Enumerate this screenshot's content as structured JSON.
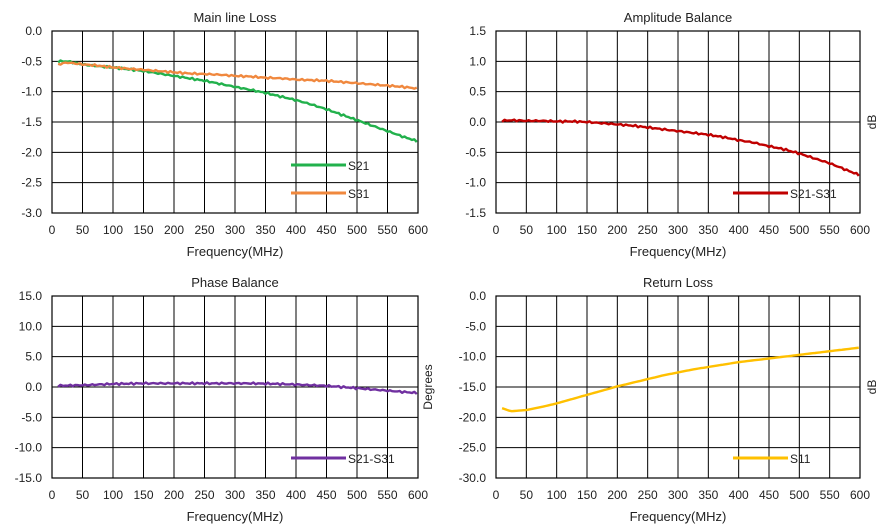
{
  "chart_data": [
    {
      "type": "line",
      "title": "Main line Loss",
      "xlabel": "Frequency(MHz)",
      "ylabel": "",
      "xlim": [
        0,
        600
      ],
      "ylim": [
        -3.0,
        0.0
      ],
      "x_ticks": [
        "0",
        "50",
        "100",
        "150",
        "200",
        "250",
        "300",
        "350",
        "400",
        "450",
        "500",
        "550",
        "600"
      ],
      "y_ticks": [
        "0.0",
        "-0.5",
        "-1.0",
        "-1.5",
        "-2.0",
        "-2.5",
        "-3.0"
      ],
      "grid": true,
      "legend_position": "bottom-right",
      "x": [
        10,
        25,
        50,
        75,
        100,
        125,
        150,
        175,
        200,
        225,
        250,
        275,
        300,
        325,
        350,
        375,
        400,
        425,
        450,
        475,
        500,
        525,
        550,
        575,
        600
      ],
      "series": [
        {
          "name": "S21",
          "color": "#22b14c",
          "values": [
            -0.5,
            -0.5,
            -0.55,
            -0.58,
            -0.6,
            -0.63,
            -0.66,
            -0.7,
            -0.74,
            -0.78,
            -0.82,
            -0.87,
            -0.92,
            -0.97,
            -1.02,
            -1.08,
            -1.14,
            -1.21,
            -1.29,
            -1.38,
            -1.47,
            -1.56,
            -1.65,
            -1.74,
            -1.82
          ]
        },
        {
          "name": "S31",
          "color": "#f0883e",
          "values": [
            -0.55,
            -0.52,
            -0.55,
            -0.57,
            -0.6,
            -0.62,
            -0.64,
            -0.66,
            -0.68,
            -0.7,
            -0.71,
            -0.72,
            -0.74,
            -0.75,
            -0.77,
            -0.78,
            -0.8,
            -0.81,
            -0.82,
            -0.84,
            -0.86,
            -0.88,
            -0.9,
            -0.92,
            -0.95
          ]
        }
      ]
    },
    {
      "type": "line",
      "title": "Amplitude Balance",
      "xlabel": "Frequency(MHz)",
      "ylabel": "dB",
      "xlim": [
        0,
        600
      ],
      "ylim": [
        -1.5,
        1.5
      ],
      "x_ticks": [
        "0",
        "50",
        "100",
        "150",
        "200",
        "250",
        "300",
        "350",
        "400",
        "450",
        "500",
        "550",
        "600"
      ],
      "y_ticks": [
        "1.5",
        "1.0",
        "0.5",
        "0.0",
        "-0.5",
        "-1.0",
        "-1.5"
      ],
      "grid": true,
      "legend_position": "bottom-right",
      "x": [
        10,
        25,
        50,
        75,
        100,
        125,
        150,
        175,
        200,
        225,
        250,
        275,
        300,
        325,
        350,
        375,
        400,
        425,
        450,
        475,
        500,
        525,
        550,
        575,
        600
      ],
      "series": [
        {
          "name": "S21-S31",
          "color": "#c00000",
          "values": [
            0.02,
            0.03,
            0.02,
            0.02,
            0.01,
            0.01,
            0.0,
            -0.02,
            -0.04,
            -0.06,
            -0.09,
            -0.12,
            -0.15,
            -0.18,
            -0.21,
            -0.25,
            -0.3,
            -0.34,
            -0.4,
            -0.45,
            -0.52,
            -0.6,
            -0.68,
            -0.78,
            -0.88
          ]
        }
      ]
    },
    {
      "type": "line",
      "title": "Phase Balance",
      "xlabel": "Frequency(MHz)",
      "ylabel": "Degrees",
      "xlim": [
        0,
        600
      ],
      "ylim": [
        -15.0,
        15.0
      ],
      "x_ticks": [
        "0",
        "50",
        "100",
        "150",
        "200",
        "250",
        "300",
        "350",
        "400",
        "450",
        "500",
        "550",
        "600"
      ],
      "y_ticks": [
        "15.0",
        "10.0",
        "5.0",
        "0.0",
        "-5.0",
        "-10.0",
        "-15.0"
      ],
      "grid": true,
      "legend_position": "bottom-right",
      "x": [
        10,
        25,
        50,
        75,
        100,
        125,
        150,
        175,
        200,
        225,
        250,
        275,
        300,
        325,
        350,
        375,
        400,
        425,
        450,
        475,
        500,
        525,
        550,
        575,
        600
      ],
      "series": [
        {
          "name": "S21-S31",
          "color": "#7030a0",
          "values": [
            0.2,
            0.25,
            0.3,
            0.4,
            0.5,
            0.55,
            0.6,
            0.6,
            0.6,
            0.6,
            0.6,
            0.6,
            0.6,
            0.6,
            0.55,
            0.5,
            0.4,
            0.3,
            0.2,
            0.0,
            -0.2,
            -0.4,
            -0.6,
            -0.8,
            -1.0
          ]
        }
      ]
    },
    {
      "type": "line",
      "title": "Return Loss",
      "xlabel": "Frequency(MHz)",
      "ylabel": "dB",
      "xlim": [
        0,
        600
      ],
      "ylim": [
        -30.0,
        0.0
      ],
      "x_ticks": [
        "0",
        "50",
        "100",
        "150",
        "200",
        "250",
        "300",
        "350",
        "400",
        "450",
        "500",
        "550",
        "600"
      ],
      "y_ticks": [
        "0.0",
        "-5.0",
        "-10.0",
        "-15.0",
        "-20.0",
        "-25.0",
        "-30.0"
      ],
      "grid": true,
      "legend_position": "bottom-right",
      "x": [
        10,
        25,
        50,
        75,
        100,
        125,
        150,
        175,
        200,
        225,
        250,
        275,
        300,
        325,
        350,
        375,
        400,
        425,
        450,
        475,
        500,
        525,
        550,
        575,
        600
      ],
      "series": [
        {
          "name": "S11",
          "color": "#ffc000",
          "values": [
            -18.5,
            -19.0,
            -18.8,
            -18.3,
            -17.7,
            -17.0,
            -16.3,
            -15.6,
            -14.9,
            -14.3,
            -13.7,
            -13.1,
            -12.6,
            -12.1,
            -11.7,
            -11.3,
            -10.9,
            -10.6,
            -10.3,
            -10.0,
            -9.7,
            -9.4,
            -9.1,
            -8.8,
            -8.5
          ]
        }
      ]
    }
  ]
}
